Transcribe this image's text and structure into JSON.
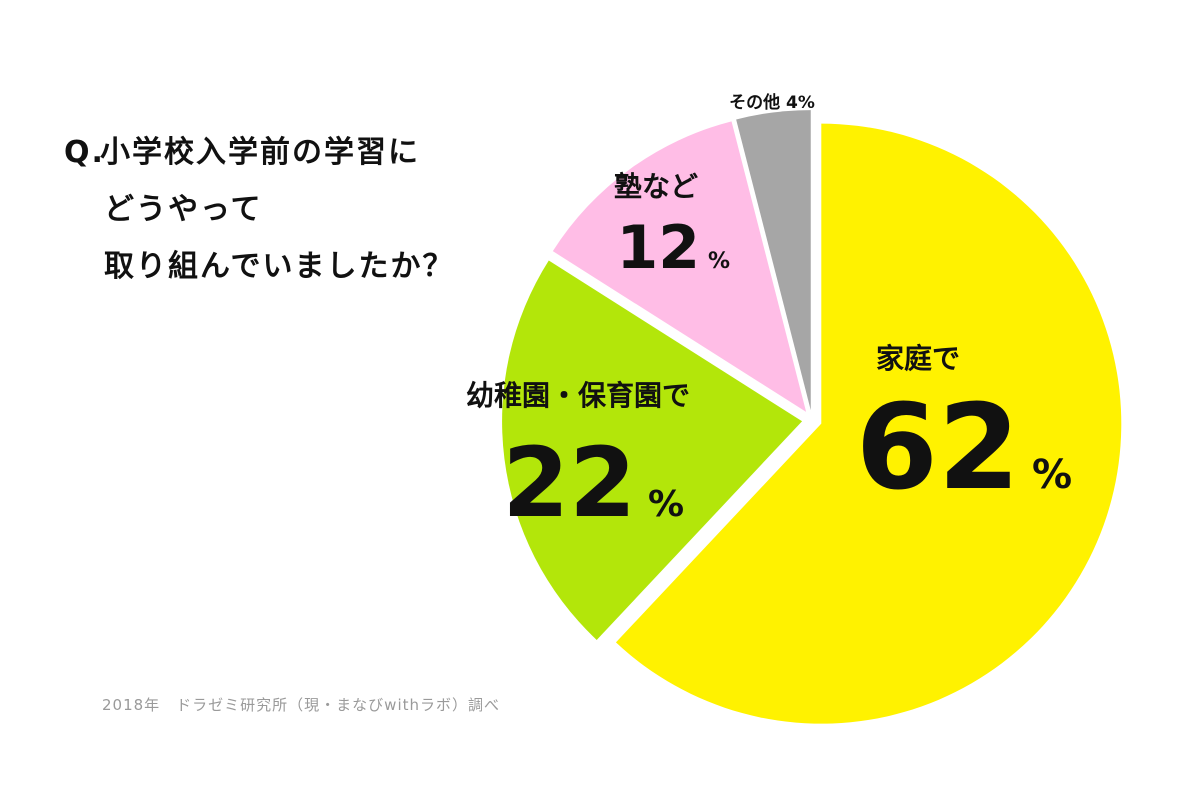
{
  "question": {
    "prefix": "Q.",
    "lines": [
      "小学校入学前の学習に",
      "どうやって",
      "取り組んでいましたか？"
    ]
  },
  "source_note": "2018年　ドラゼミ研究所（現・まなびwithラボ）調べ",
  "chart_data": {
    "type": "pie",
    "title": "",
    "start": "12 o'clock, clockwise",
    "slices": [
      {
        "label": "家庭で",
        "value": 62,
        "display": "62",
        "unit": "%",
        "color": "#fff200",
        "exploded": true
      },
      {
        "label": "幼稚園・保育園で",
        "value": 22,
        "display": "22",
        "unit": "%",
        "color": "#b3e60a",
        "exploded": true
      },
      {
        "label": "塾など",
        "value": 12,
        "display": "12",
        "unit": "%",
        "color": "#ffbde6",
        "exploded": true
      },
      {
        "label": "その他",
        "value": 4,
        "display": "その他 4%",
        "unit": "%",
        "color": "#a6a6a6",
        "exploded": true
      }
    ]
  }
}
